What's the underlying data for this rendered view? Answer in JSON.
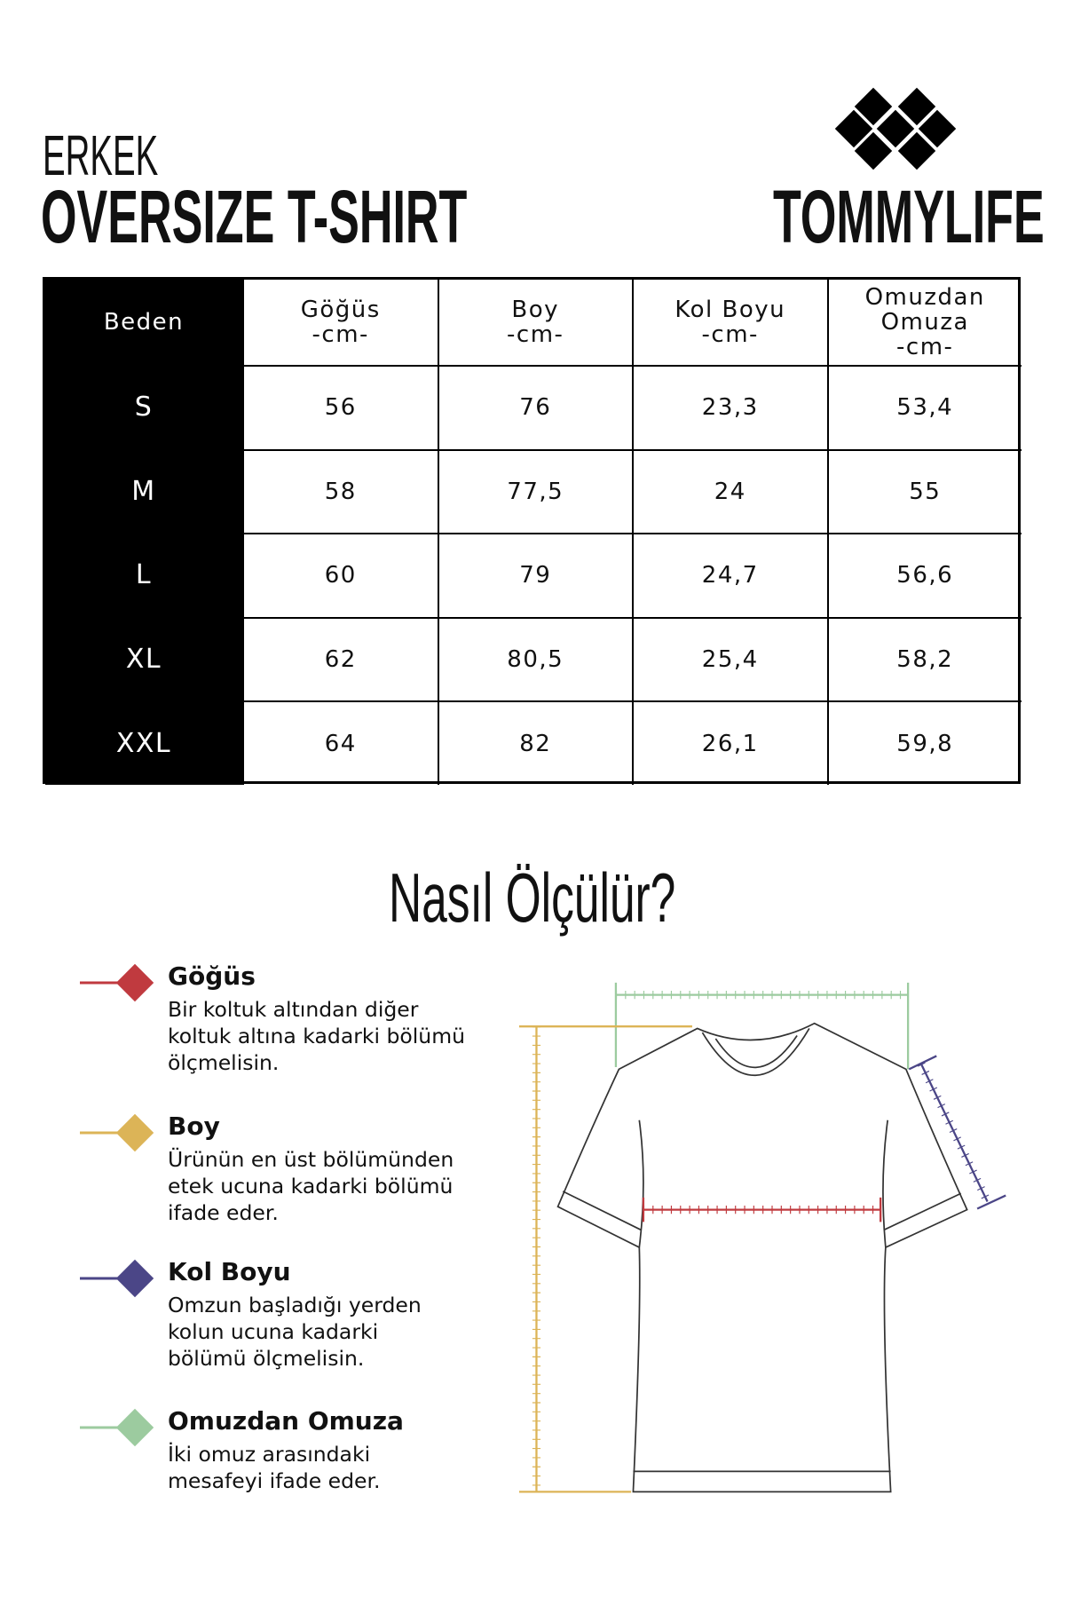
{
  "header": {
    "subtitle": "ERKEK",
    "title": "OVERSIZE T-SHIRT",
    "brand": "TOMMYLIFE"
  },
  "table": {
    "headers": [
      [
        "Beden"
      ],
      [
        "Göğüs",
        "-cm-"
      ],
      [
        "Boy",
        "-cm-"
      ],
      [
        "Kol Boyu",
        "-cm-"
      ],
      [
        "Omuzdan",
        "Omuza",
        "-cm-"
      ]
    ],
    "rows": [
      [
        "S",
        "56",
        "76",
        "23,3",
        "53,4"
      ],
      [
        "M",
        "58",
        "77,5",
        "24",
        "55"
      ],
      [
        "L",
        "60",
        "79",
        "24,7",
        "56,6"
      ],
      [
        "XL",
        "62",
        "80,5",
        "25,4",
        "58,2"
      ],
      [
        "XXL",
        "64",
        "82",
        "26,1",
        "59,8"
      ]
    ]
  },
  "guide": {
    "title": "Nasıl Ölçülür?",
    "items": [
      {
        "label": "Göğüs",
        "color": "#c03a3f",
        "lines": [
          "Bir koltuk altından diğer",
          "koltuk altına kadarki bölümü",
          "ölçmelisin."
        ]
      },
      {
        "label": "Boy",
        "color": "#dcb457",
        "lines": [
          "Ürünün en üst bölümünden",
          "etek ucuna kadarki bölümü",
          "ifade eder."
        ]
      },
      {
        "label": "Kol Boyu",
        "color": "#4b4687",
        "lines": [
          "Omzun başladığı yerden",
          "kolun ucuna kadarki",
          "bölümü ölçmelisin."
        ]
      },
      {
        "label": "Omuzdan Omuza",
        "color": "#9ccb9f",
        "lines": [
          "İki omuz arasındaki",
          "mesafeyi ifade eder."
        ]
      }
    ]
  }
}
